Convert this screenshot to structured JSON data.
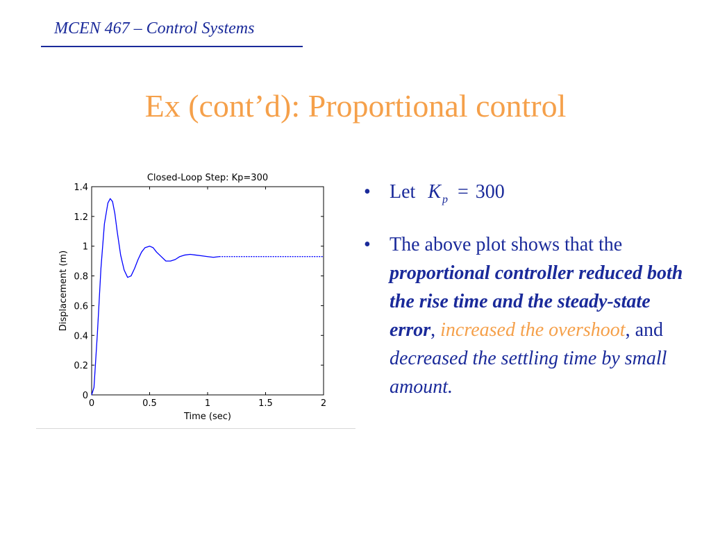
{
  "header": {
    "course": "MCEN 467 – Control Systems",
    "title": "Ex (cont’d): Proportional control"
  },
  "bullets": {
    "b1_prefix": "Let",
    "b1_K": "K",
    "b1_sub": "p",
    "b1_eq": "=",
    "b1_val": "300",
    "b2_t1": "The above plot shows that the ",
    "b2_bold": "proportional controller reduced both the rise time and the steady-state error",
    "b2_t2": ", ",
    "b2_orange": "increased the overshoot",
    "b2_t3": ", and ",
    "b2_ital": "decreased the settling time by small amount."
  },
  "colors": {
    "accent": "#f5a04a",
    "text_blue": "#1a2a9a",
    "line": "#0000ff"
  },
  "chart_data": {
    "type": "line",
    "title": "Closed-Loop Step: Kp=300",
    "xlabel": "Time (sec)",
    "ylabel": "Displacement (m)",
    "xlim": [
      0,
      2
    ],
    "ylim": [
      0,
      1.4
    ],
    "xticks": [
      "0",
      "0.5",
      "1",
      "1.5",
      "2"
    ],
    "yticks": [
      "0",
      "0.2",
      "0.4",
      "0.6",
      "0.8",
      "1",
      "1.2",
      "1.4"
    ],
    "grid": false,
    "series": [
      {
        "x": [
          0,
          0.02,
          0.05,
          0.08,
          0.11,
          0.14,
          0.16,
          0.18,
          0.2,
          0.22,
          0.25,
          0.28,
          0.31,
          0.34,
          0.37,
          0.4,
          0.43,
          0.46,
          0.5,
          0.53,
          0.56,
          0.6,
          0.64,
          0.68,
          0.72,
          0.76,
          0.8,
          0.85,
          0.9,
          0.95,
          1.0,
          1.05,
          1.1
        ],
        "y": [
          0,
          0.05,
          0.42,
          0.85,
          1.15,
          1.29,
          1.32,
          1.3,
          1.22,
          1.1,
          0.94,
          0.84,
          0.79,
          0.8,
          0.85,
          0.91,
          0.96,
          0.99,
          1.0,
          0.99,
          0.96,
          0.93,
          0.9,
          0.9,
          0.91,
          0.93,
          0.94,
          0.945,
          0.94,
          0.935,
          0.93,
          0.925,
          0.93
        ]
      },
      {
        "x": [
          1.1,
          2.0
        ],
        "y": [
          0.93,
          0.93
        ],
        "style": "dashed"
      }
    ]
  }
}
